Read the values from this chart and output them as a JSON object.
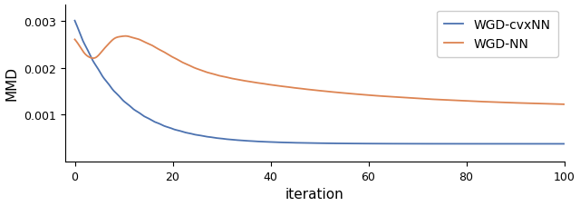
{
  "title": "",
  "xlabel": "iteration",
  "ylabel": "MMD",
  "xlim": [
    -2,
    100
  ],
  "ylim": [
    0.0,
    0.00335
  ],
  "yticks": [
    0.001,
    0.002,
    0.003
  ],
  "xticks": [
    0,
    20,
    40,
    60,
    80,
    100
  ],
  "legend_labels": [
    "WGD-cvxNN",
    "WGD-NN"
  ],
  "line_colors": [
    "#4C72B0",
    "#DD8452"
  ],
  "figsize": [
    6.4,
    2.28
  ],
  "dpi": 100
}
